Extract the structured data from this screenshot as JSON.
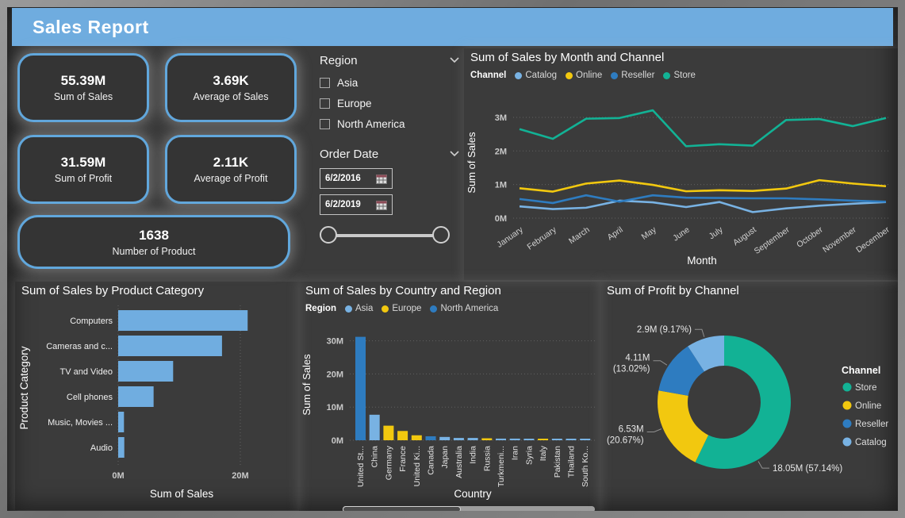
{
  "header": {
    "title": "Sales Report"
  },
  "kpi_cards": [
    {
      "value": "55.39M",
      "label": "Sum of Sales"
    },
    {
      "value": "3.69K",
      "label": "Average of Sales"
    },
    {
      "value": "31.59M",
      "label": "Sum of Profit"
    },
    {
      "value": "2.11K",
      "label": "Average of Profit"
    },
    {
      "value": "1638",
      "label": "Number of Product"
    }
  ],
  "region_slicer": {
    "title": "Region",
    "options": [
      "Asia",
      "Europe",
      "North America"
    ],
    "checked": [
      false,
      false,
      false
    ]
  },
  "date_slicer": {
    "title": "Order Date",
    "start": "6/2/2016",
    "end": "6/2/2019"
  },
  "icons": {
    "region_chevron": "chevron-down",
    "date_chevron": "chevron-down",
    "calendar": "calendar-grid"
  },
  "colors": {
    "background": "#3b3b3b",
    "header_blue": "#6facdf",
    "card_border": "#61a7dc",
    "catalog_lightblue": "#78b2e3",
    "online_yellow": "#f2c80f",
    "reseller_blue": "#2e7cc0",
    "store_teal": "#12b295",
    "bar_blue": "#70ade0",
    "axis_text": "#c9c9c9",
    "grid": "#606060"
  },
  "chart_data": [
    {
      "type": "line",
      "title": "Sum of Sales by Month and Channel",
      "legend_title": "Channel",
      "x": [
        "January",
        "February",
        "March",
        "April",
        "May",
        "June",
        "July",
        "August",
        "September",
        "October",
        "November",
        "December"
      ],
      "xlabel": "Month",
      "ylabel": "Sum of Sales",
      "ylim": [
        0,
        3.4
      ],
      "unit": "M",
      "yticks": [
        {
          "v": 0,
          "label": "0M"
        },
        {
          "v": 1,
          "label": "1M"
        },
        {
          "v": 2,
          "label": "2M"
        },
        {
          "v": 3,
          "label": "3M"
        }
      ],
      "grid": "dotted-horizontal",
      "legend_position": "top",
      "series": [
        {
          "name": "Catalog",
          "color": "#78b2e3",
          "values": [
            0.35,
            0.27,
            0.31,
            0.52,
            0.47,
            0.33,
            0.48,
            0.18,
            0.29,
            0.37,
            0.43,
            0.48
          ]
        },
        {
          "name": "Online",
          "color": "#f2c80f",
          "values": [
            0.89,
            0.79,
            1.03,
            1.12,
            0.99,
            0.8,
            0.83,
            0.81,
            0.88,
            1.13,
            1.03,
            0.95
          ]
        },
        {
          "name": "Reseller",
          "color": "#2e7cc0",
          "values": [
            0.57,
            0.45,
            0.68,
            0.49,
            0.68,
            0.61,
            0.6,
            0.59,
            0.59,
            0.56,
            0.52,
            0.49
          ]
        },
        {
          "name": "Store",
          "color": "#12b295",
          "values": [
            2.65,
            2.36,
            2.96,
            2.98,
            3.21,
            2.14,
            2.2,
            2.16,
            2.92,
            2.95,
            2.74,
            2.98
          ]
        }
      ]
    },
    {
      "type": "bar",
      "title": "Sum of Sales by Product Category",
      "categories": [
        "Computers",
        "Cameras and c...",
        "TV and Video",
        "Cell phones",
        "Music, Movies ...",
        "Audio"
      ],
      "values": [
        21.2,
        17.0,
        9.0,
        5.8,
        0.95,
        1.0
      ],
      "unit": "M",
      "xlabel": "Sum of Sales",
      "ylabel": "Product Category",
      "xlim": [
        0,
        22.5
      ],
      "xticks": [
        {
          "v": 0,
          "label": "0M"
        },
        {
          "v": 20,
          "label": "20M"
        }
      ],
      "bar_color": "#70ade0",
      "grid": "dotted-vertical"
    },
    {
      "type": "column",
      "title": "Sum of Sales by Country and Region",
      "legend_title": "Region",
      "legend": [
        {
          "name": "Asia",
          "color": "#78b2e3"
        },
        {
          "name": "Europe",
          "color": "#f2c80f"
        },
        {
          "name": "North America",
          "color": "#2e7cc0"
        }
      ],
      "xlabel": "Country",
      "ylabel": "Sum of Sales",
      "ylim": [
        0,
        33.5
      ],
      "unit": "M",
      "yticks": [
        {
          "v": 0,
          "label": "0M"
        },
        {
          "v": 10,
          "label": "10M"
        },
        {
          "v": 20,
          "label": "20M"
        },
        {
          "v": 30,
          "label": "30M"
        }
      ],
      "grid": "dotted-horizontal",
      "has_scrollbar": true,
      "points": [
        {
          "country": "United St...",
          "value": 31.2,
          "region": "North America"
        },
        {
          "country": "China",
          "value": 7.7,
          "region": "Asia"
        },
        {
          "country": "Germany",
          "value": 4.4,
          "region": "Europe"
        },
        {
          "country": "France",
          "value": 2.8,
          "region": "Europe"
        },
        {
          "country": "United Ki...",
          "value": 1.5,
          "region": "Europe"
        },
        {
          "country": "Canada",
          "value": 1.2,
          "region": "North America"
        },
        {
          "country": "Japan",
          "value": 1.0,
          "region": "Asia"
        },
        {
          "country": "Australia",
          "value": 0.7,
          "region": "Asia"
        },
        {
          "country": "India",
          "value": 0.7,
          "region": "Asia"
        },
        {
          "country": "Russia",
          "value": 0.6,
          "region": "Europe"
        },
        {
          "country": "Turkmeni...",
          "value": 0.5,
          "region": "Asia"
        },
        {
          "country": "Iran",
          "value": 0.5,
          "region": "Asia"
        },
        {
          "country": "Syria",
          "value": 0.45,
          "region": "Asia"
        },
        {
          "country": "Italy",
          "value": 0.45,
          "region": "Europe"
        },
        {
          "country": "Pakistan",
          "value": 0.35,
          "region": "Asia"
        },
        {
          "country": "Thailand",
          "value": 0.35,
          "region": "Asia"
        },
        {
          "country": "South Ko...",
          "value": 0.35,
          "region": "Asia"
        }
      ]
    },
    {
      "type": "donut",
      "title": "Sum of Profit by Channel",
      "legend_title": "Channel",
      "legend_position": "right",
      "slices": [
        {
          "name": "Store",
          "value": 18.05,
          "pct": 57.14,
          "color": "#12b295",
          "lines": [
            "18.05M (57.14%)"
          ]
        },
        {
          "name": "Online",
          "value": 6.53,
          "pct": 20.67,
          "color": "#f2c80f",
          "lines": [
            "6.53M",
            "(20.67%)"
          ]
        },
        {
          "name": "Reseller",
          "value": 4.11,
          "pct": 13.02,
          "color": "#2e7cc0",
          "lines": [
            "4.11M",
            "(13.02%)"
          ]
        },
        {
          "name": "Catalog",
          "value": 2.9,
          "pct": 9.17,
          "color": "#78b2e3",
          "lines": [
            "2.9M (9.17%)"
          ]
        }
      ]
    }
  ]
}
